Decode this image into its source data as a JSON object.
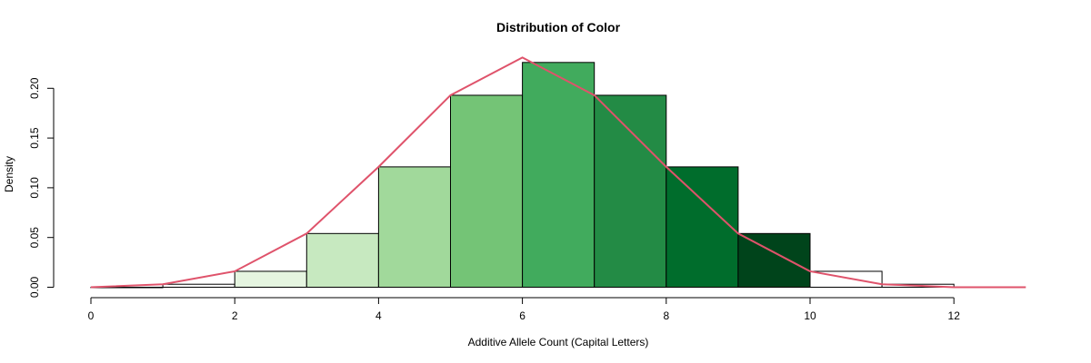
{
  "chart_data": {
    "type": "bar",
    "title": "Distribution of Color",
    "xlabel": "Additive Allele Count (Capital Letters)",
    "ylabel": "Density",
    "xlim": [
      0,
      13
    ],
    "ylim": [
      0,
      0.23
    ],
    "x_ticks": [
      0,
      2,
      4,
      6,
      8,
      10,
      12
    ],
    "y_ticks": [
      0.0,
      0.05,
      0.1,
      0.15,
      0.2
    ],
    "y_tick_labels": [
      "0.00",
      "0.05",
      "0.10",
      "0.15",
      "0.20"
    ],
    "bins": [
      {
        "start": 0,
        "end": 1,
        "density": 0.0,
        "color": "#ffffff"
      },
      {
        "start": 1,
        "end": 2,
        "density": 0.003,
        "color": "#ffffff"
      },
      {
        "start": 2,
        "end": 3,
        "density": 0.016,
        "color": "#e5f5e0"
      },
      {
        "start": 3,
        "end": 4,
        "density": 0.054,
        "color": "#c7e9c0"
      },
      {
        "start": 4,
        "end": 5,
        "density": 0.121,
        "color": "#a1d99b"
      },
      {
        "start": 5,
        "end": 6,
        "density": 0.193,
        "color": "#74c476"
      },
      {
        "start": 6,
        "end": 7,
        "density": 0.226,
        "color": "#41ab5d"
      },
      {
        "start": 7,
        "end": 8,
        "density": 0.193,
        "color": "#238b45"
      },
      {
        "start": 8,
        "end": 9,
        "density": 0.121,
        "color": "#006d2c"
      },
      {
        "start": 9,
        "end": 10,
        "density": 0.054,
        "color": "#00441b"
      },
      {
        "start": 10,
        "end": 11,
        "density": 0.016,
        "color": "#ffffff"
      },
      {
        "start": 11,
        "end": 12,
        "density": 0.003,
        "color": "#ffffff"
      }
    ],
    "line": {
      "color": "#df536b",
      "x": [
        0,
        1,
        2,
        3,
        4,
        5,
        6,
        7,
        8,
        9,
        10,
        11,
        12,
        13
      ],
      "y": [
        0.0,
        0.003,
        0.016,
        0.054,
        0.121,
        0.193,
        0.231,
        0.193,
        0.121,
        0.054,
        0.016,
        0.003,
        0.0,
        0.0
      ]
    }
  }
}
